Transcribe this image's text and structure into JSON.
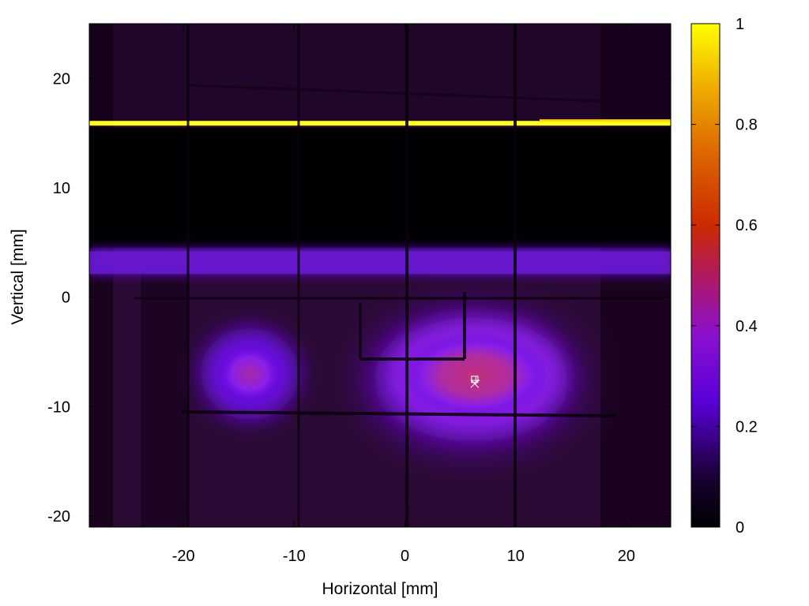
{
  "chart_data": {
    "type": "heatmap",
    "title": "",
    "xlabel": "Horizontal [mm]",
    "ylabel": "Vertical [mm]",
    "xlim": [
      -28.5,
      24
    ],
    "ylim": [
      -21,
      25
    ],
    "x_ticks": [
      -20,
      -10,
      0,
      10,
      20
    ],
    "y_ticks": [
      -20,
      -10,
      0,
      10,
      20
    ],
    "colorbar": {
      "range": [
        0,
        1
      ],
      "ticks": [
        0,
        0.2,
        0.4,
        0.6,
        0.8,
        1
      ],
      "palette": [
        "#000000",
        "#1a0033",
        "#7a00ff",
        "#cc2a00",
        "#e58a00",
        "#ffff00"
      ]
    },
    "features": [
      {
        "name": "saturated horizontal line",
        "y": 15.9,
        "x_from": -28.5,
        "x_to": 24,
        "value": 1.0
      },
      {
        "name": "dark band",
        "y_from": 4.5,
        "y_to": 15.5,
        "value": 0.0
      },
      {
        "name": "horizontal band",
        "y_from": 2.0,
        "y_to": 4.5,
        "value": 0.25
      },
      {
        "name": "left spot",
        "x": -14,
        "y": -7,
        "value": 0.35
      },
      {
        "name": "main spot",
        "x": 6,
        "y": -7.5,
        "value": 0.45
      }
    ],
    "markers": [
      {
        "symbol": "square",
        "x": 6.3,
        "y": -7.5
      },
      {
        "symbol": "plus",
        "x": 6.4,
        "y": -7.6
      },
      {
        "symbol": "cross",
        "x": 6.3,
        "y": -7.9
      }
    ],
    "grid": false
  }
}
